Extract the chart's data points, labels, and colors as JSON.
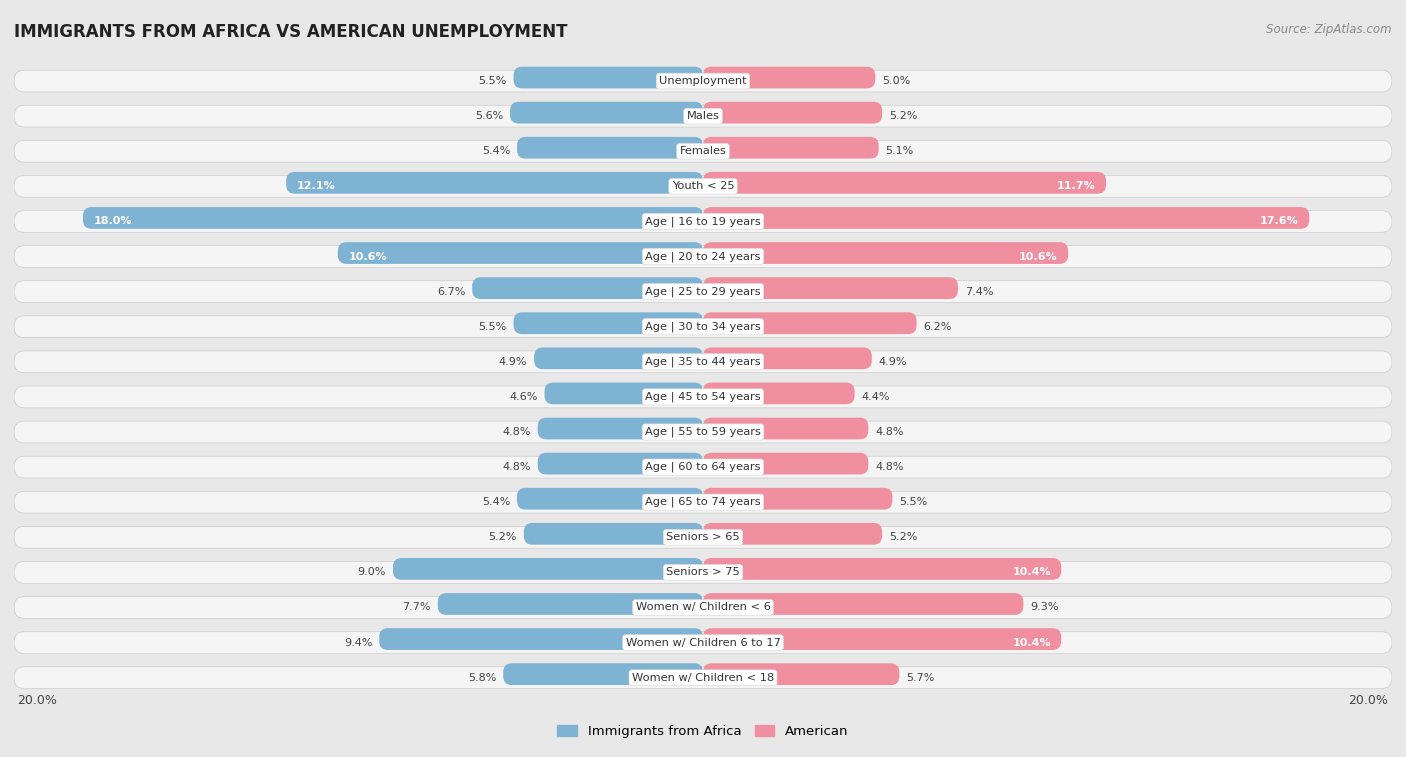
{
  "title": "IMMIGRANTS FROM AFRICA VS AMERICAN UNEMPLOYMENT",
  "source": "Source: ZipAtlas.com",
  "categories": [
    "Unemployment",
    "Males",
    "Females",
    "Youth < 25",
    "Age | 16 to 19 years",
    "Age | 20 to 24 years",
    "Age | 25 to 29 years",
    "Age | 30 to 34 years",
    "Age | 35 to 44 years",
    "Age | 45 to 54 years",
    "Age | 55 to 59 years",
    "Age | 60 to 64 years",
    "Age | 65 to 74 years",
    "Seniors > 65",
    "Seniors > 75",
    "Women w/ Children < 6",
    "Women w/ Children 6 to 17",
    "Women w/ Children < 18"
  ],
  "africa_values": [
    5.5,
    5.6,
    5.4,
    12.1,
    18.0,
    10.6,
    6.7,
    5.5,
    4.9,
    4.6,
    4.8,
    4.8,
    5.4,
    5.2,
    9.0,
    7.7,
    9.4,
    5.8
  ],
  "american_values": [
    5.0,
    5.2,
    5.1,
    11.7,
    17.6,
    10.6,
    7.4,
    6.2,
    4.9,
    4.4,
    4.8,
    4.8,
    5.5,
    5.2,
    10.4,
    9.3,
    10.4,
    5.7
  ],
  "africa_color": "#7fb3d3",
  "american_color": "#f08fa0",
  "background_color": "#e8e8e8",
  "row_bg_color": "#f5f5f5",
  "xlim": 20.0,
  "legend_africa": "Immigrants from Africa",
  "legend_american": "American",
  "axis_label_left": "20.0%",
  "axis_label_right": "20.0%"
}
